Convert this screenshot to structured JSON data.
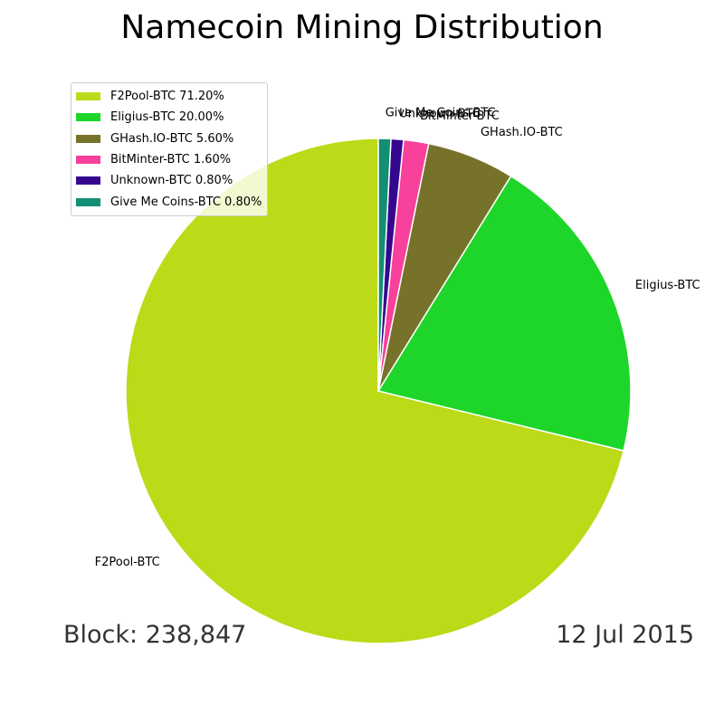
{
  "chart_data": {
    "type": "pie",
    "title": "Namecoin Mining Distribution",
    "slices": [
      {
        "label": "F2Pool-BTC",
        "legend": "F2Pool-BTC 71.20%",
        "value": 71.2,
        "color": "#bcda17"
      },
      {
        "label": "Eligius-BTC",
        "legend": "Eligius-BTC 20.00%",
        "value": 20.0,
        "color": "#1dd629"
      },
      {
        "label": "GHash.IO-BTC",
        "legend": "GHash.IO-BTC 5.60%",
        "value": 5.6,
        "color": "#77722a"
      },
      {
        "label": "BitMinter-BTC",
        "legend": "BitMinter-BTC 1.60%",
        "value": 1.6,
        "color": "#f7419a"
      },
      {
        "label": "Unknown-BTC",
        "legend": "Unknown-BTC 0.80%",
        "value": 0.8,
        "color": "#35078f"
      },
      {
        "label": "Give Me Coins-BTC",
        "legend": "Give Me Coins-BTC 0.80%",
        "value": 0.8,
        "color": "#138f74"
      }
    ],
    "start_angle_deg": 90,
    "direction": "counterclockwise",
    "legend_position": "top-left"
  },
  "footer": {
    "block": "Block: 238,847",
    "date": "12 Jul 2015"
  }
}
